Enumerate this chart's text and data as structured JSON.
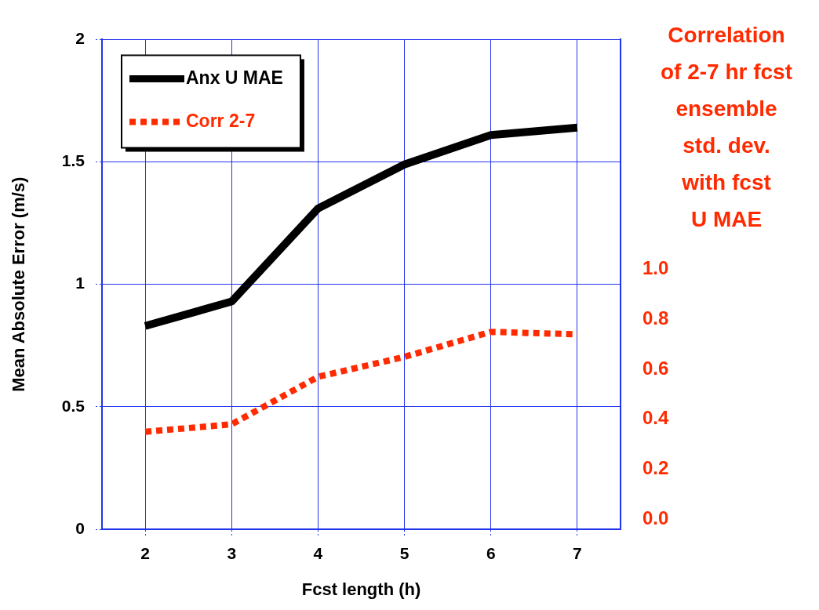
{
  "chart_data": {
    "type": "line",
    "xlabel": "Fcst length (h)",
    "ylabel": "Mean Absolute Error (m/s)",
    "y2label": "Correlation\nof 2-7 hr fcst\nensemble\nstd. dev.\nwith fcst\nU MAE",
    "x": [
      2,
      3,
      4,
      5,
      6,
      7
    ],
    "series": [
      {
        "name": "Anx U MAE",
        "color": "#000000",
        "values": [
          0.83,
          0.93,
          1.31,
          1.49,
          1.61,
          1.64
        ],
        "line_style": "solid"
      },
      {
        "name": "Corr 2-7",
        "color": "#ff2a00",
        "values": [
          0.35,
          0.38,
          0.57,
          0.65,
          0.75,
          0.74
        ],
        "axis": "y2",
        "line_style": "dashed"
      }
    ],
    "xlim": [
      1.5,
      7.5
    ],
    "xticks": [
      2,
      3,
      4,
      5,
      6,
      7
    ],
    "ylim": [
      0,
      2
    ],
    "yticks": [
      0,
      0.5,
      1,
      1.5,
      2
    ],
    "y2lim": [
      -0.04,
      1.92
    ],
    "y2ticks": [
      {
        "value": 0,
        "label": "0.0"
      },
      0.2,
      0.4,
      0.6,
      0.8,
      {
        "value": 1,
        "label": "1.0"
      }
    ],
    "grid": true,
    "legend": "top left",
    "marker": "none"
  }
}
